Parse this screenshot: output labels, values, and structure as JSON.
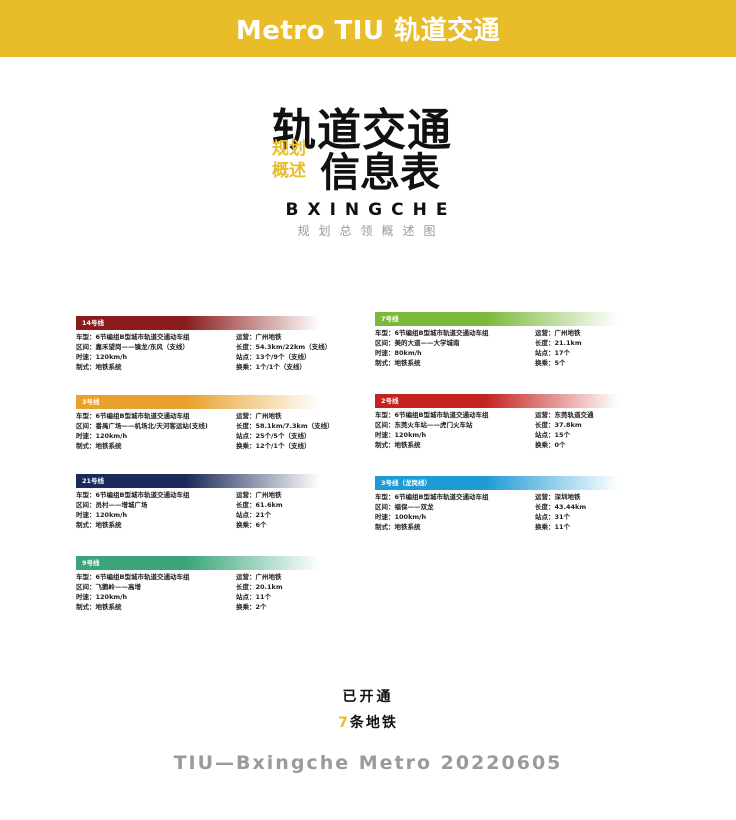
{
  "header": {
    "title": "Metro TIU 轨道交通"
  },
  "hero": {
    "main_line1": "轨道交通",
    "side_line1": "规划",
    "side_line2": "概述",
    "main_line2": "信息表",
    "brand": "BXINGCHE",
    "subtitle": "规划总领概述图"
  },
  "colors": {
    "accent": "#e9bd2a"
  },
  "lines": [
    {
      "name": "14号线",
      "color": "#8b1c1c",
      "car_type": "车型：6节编组B型城市轨道交通动车组",
      "section": "区间：嘉禾望岗——镇龙/东风（支线）",
      "speed": "时速：120km/h",
      "system": "制式：地铁系统",
      "operator": "运营：广州地铁",
      "length": "长度：54.3km/22km（支线）",
      "stations": "站点：13个/9个（支线）",
      "transfers": "换乘：1个/1个（支线）"
    },
    {
      "name": "3号线",
      "color": "#e8a12c",
      "car_type": "车型：6节编组B型城市轨道交通动车组",
      "section": "区间：番禺广场——机场北/天河客运站(支线)",
      "speed": "时速：120km/h",
      "system": "制式：地铁系统",
      "operator": "运营：广州地铁",
      "length": "长度：58.1km/7.3km（支线）",
      "stations": "站点：25个/5个（支线）",
      "transfers": "换乘：12个/1个（支线）"
    },
    {
      "name": "21号线",
      "color": "#1b2a5a",
      "car_type": "车型：6节编组B型城市轨道交通动车组",
      "section": "区间：员村——增城广场",
      "speed": "时速：120km/h",
      "system": "制式：地铁系统",
      "operator": "运营：广州地铁",
      "length": "长度：61.6km",
      "stations": "站点：21个",
      "transfers": "换乘：6个"
    },
    {
      "name": "9号线",
      "color": "#3aa57a",
      "car_type": "车型：6节编组B型城市轨道交通动车组",
      "section": "区间：飞鹅岭——高增",
      "speed": "时速：120km/h",
      "system": "制式：地铁系统",
      "operator": "运营：广州地铁",
      "length": "长度：20.1km",
      "stations": "站点：11个",
      "transfers": "换乘：2个"
    },
    {
      "name": "7号线",
      "color": "#7bb93a",
      "car_type": "车型：6节编组B型城市轨道交通动车组",
      "section": "区间：美的大道——大学城南",
      "speed": "时速：80km/h",
      "system": "制式：地铁系统",
      "operator": "运营：广州地铁",
      "length": "长度：21.1km",
      "stations": "站点：17个",
      "transfers": "换乘：5个"
    },
    {
      "name": "2号线",
      "color": "#c4221f",
      "car_type": "车型：6节编组B型城市轨道交通动车组",
      "section": "区间：东莞火车站——虎门火车站",
      "speed": "时速：120km/h",
      "system": "制式：地铁系统",
      "operator": "运营：东莞轨道交通",
      "length": "长度：37.8km",
      "stations": "站点：15个",
      "transfers": "换乘：0个"
    },
    {
      "name": "3号线（龙岗线）",
      "color": "#1e9ad6",
      "car_type": "车型：6节编组B型城市轨道交通动车组",
      "section": "区间：福保——双龙",
      "speed": "时速：100km/h",
      "system": "制式：地铁系统",
      "operator": "运营：深圳地铁",
      "length": "长度：43.44km",
      "stations": "站点：31个",
      "transfers": "换乘：11个"
    }
  ],
  "summary": {
    "opened": "已开通",
    "count": "7",
    "count_suffix": "条地铁"
  },
  "footer": {
    "text": "TIU—Bxingche Metro 20220605"
  }
}
